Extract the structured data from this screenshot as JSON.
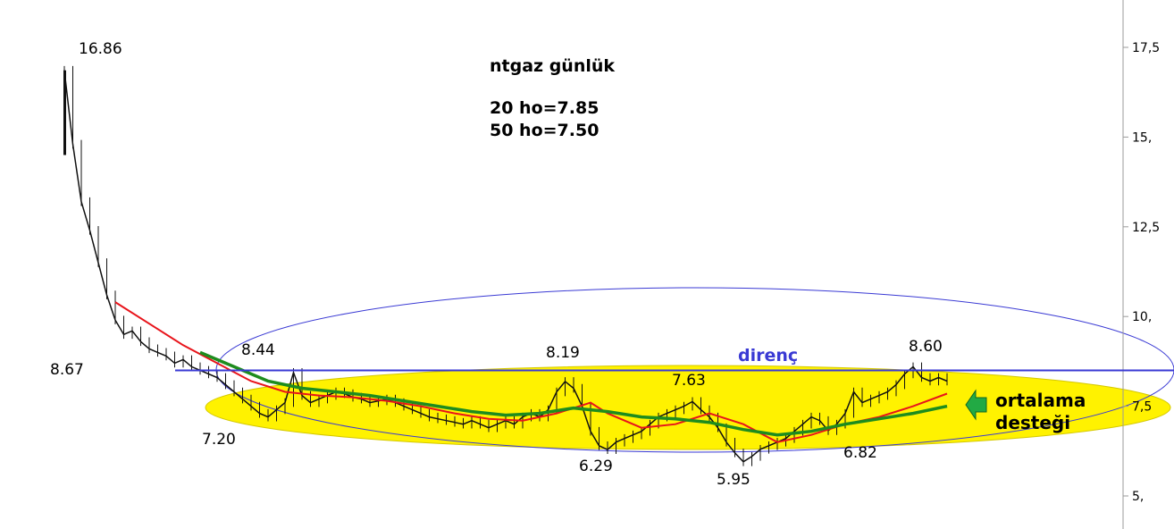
{
  "chart_data": {
    "type": "candlestick",
    "title": "ntgaz günlük",
    "ma_lines": [
      {
        "text": "20 ho=7.85",
        "color": "#e8141b"
      },
      {
        "text": "50 ho=7.50",
        "color": "#1e8c1e"
      }
    ],
    "y_axis": {
      "min": 4.5,
      "max": 18.5,
      "ticks": [
        {
          "value": 17.5,
          "label": "17,5"
        },
        {
          "value": 15,
          "label": "15,"
        },
        {
          "value": 12.5,
          "label": "12,5"
        },
        {
          "value": 10,
          "label": "10,"
        },
        {
          "value": 7.5,
          "label": "7,5"
        },
        {
          "value": 5,
          "label": "5,"
        }
      ]
    },
    "resistance": {
      "value": 8.5,
      "label": "direnç",
      "color": "#3a3ad4"
    },
    "support_label_lines": [
      "ortalama",
      "desteği"
    ],
    "annotations": [
      {
        "text": "16.86",
        "value": 16.86
      },
      {
        "text": "8.67",
        "value": 8.67
      },
      {
        "text": "7.20",
        "value": 7.2
      },
      {
        "text": "8.44",
        "value": 8.44
      },
      {
        "text": "8.19",
        "value": 8.19
      },
      {
        "text": "7.63",
        "value": 7.63
      },
      {
        "text": "6.29",
        "value": 6.29
      },
      {
        "text": "5.95",
        "value": 5.95
      },
      {
        "text": "6.82",
        "value": 6.82
      },
      {
        "text": "8.60",
        "value": 8.6
      }
    ],
    "price_path": [
      [
        0,
        16.86
      ],
      [
        1,
        14.8
      ],
      [
        2,
        13.2
      ],
      [
        3,
        12.4
      ],
      [
        4,
        11.5
      ],
      [
        5,
        10.6
      ],
      [
        6,
        9.9
      ],
      [
        7,
        9.5
      ],
      [
        8,
        9.6
      ],
      [
        9,
        9.3
      ],
      [
        10,
        9.1
      ],
      [
        11,
        9.0
      ],
      [
        12,
        8.9
      ],
      [
        13,
        8.7
      ],
      [
        14,
        8.8
      ],
      [
        15,
        8.6
      ],
      [
        16,
        8.5
      ],
      [
        17,
        8.4
      ],
      [
        18,
        8.3
      ],
      [
        19,
        8.1
      ],
      [
        20,
        7.9
      ],
      [
        21,
        7.7
      ],
      [
        22,
        7.5
      ],
      [
        23,
        7.3
      ],
      [
        24,
        7.2
      ],
      [
        25,
        7.4
      ],
      [
        26,
        7.6
      ],
      [
        27,
        8.44
      ],
      [
        28,
        7.8
      ],
      [
        29,
        7.6
      ],
      [
        30,
        7.7
      ],
      [
        31,
        7.8
      ],
      [
        32,
        7.9
      ],
      [
        33,
        7.85
      ],
      [
        34,
        7.75
      ],
      [
        35,
        7.7
      ],
      [
        36,
        7.6
      ],
      [
        37,
        7.65
      ],
      [
        38,
        7.7
      ],
      [
        39,
        7.6
      ],
      [
        40,
        7.5
      ],
      [
        41,
        7.4
      ],
      [
        42,
        7.3
      ],
      [
        43,
        7.2
      ],
      [
        44,
        7.15
      ],
      [
        45,
        7.1
      ],
      [
        46,
        7.05
      ],
      [
        47,
        7.0
      ],
      [
        48,
        7.1
      ],
      [
        49,
        7.0
      ],
      [
        50,
        6.9
      ],
      [
        51,
        7.0
      ],
      [
        52,
        7.1
      ],
      [
        53,
        7.0
      ],
      [
        54,
        7.2
      ],
      [
        55,
        7.3
      ],
      [
        56,
        7.2
      ],
      [
        57,
        7.4
      ],
      [
        58,
        7.9
      ],
      [
        59,
        8.19
      ],
      [
        60,
        8.0
      ],
      [
        61,
        7.5
      ],
      [
        62,
        6.8
      ],
      [
        63,
        6.4
      ],
      [
        64,
        6.29
      ],
      [
        65,
        6.5
      ],
      [
        66,
        6.6
      ],
      [
        67,
        6.7
      ],
      [
        68,
        6.8
      ],
      [
        69,
        7.0
      ],
      [
        70,
        7.2
      ],
      [
        71,
        7.3
      ],
      [
        72,
        7.4
      ],
      [
        73,
        7.5
      ],
      [
        74,
        7.63
      ],
      [
        75,
        7.4
      ],
      [
        76,
        7.2
      ],
      [
        77,
        6.9
      ],
      [
        78,
        6.5
      ],
      [
        79,
        6.2
      ],
      [
        80,
        5.95
      ],
      [
        81,
        6.1
      ],
      [
        82,
        6.3
      ],
      [
        83,
        6.4
      ],
      [
        84,
        6.5
      ],
      [
        85,
        6.6
      ],
      [
        86,
        6.8
      ],
      [
        87,
        7.0
      ],
      [
        88,
        7.2
      ],
      [
        89,
        7.1
      ],
      [
        90,
        6.82
      ],
      [
        91,
        7.0
      ],
      [
        92,
        7.3
      ],
      [
        93,
        7.9
      ],
      [
        94,
        7.6
      ],
      [
        95,
        7.7
      ],
      [
        96,
        7.8
      ],
      [
        97,
        7.9
      ],
      [
        98,
        8.1
      ],
      [
        99,
        8.4
      ],
      [
        100,
        8.6
      ],
      [
        101,
        8.3
      ],
      [
        102,
        8.2
      ],
      [
        103,
        8.3
      ],
      [
        104,
        8.2
      ]
    ],
    "ma20_path": [
      [
        6,
        10.4
      ],
      [
        10,
        9.8
      ],
      [
        14,
        9.2
      ],
      [
        18,
        8.7
      ],
      [
        22,
        8.2
      ],
      [
        26,
        7.9
      ],
      [
        30,
        7.8
      ],
      [
        34,
        7.75
      ],
      [
        38,
        7.65
      ],
      [
        42,
        7.5
      ],
      [
        46,
        7.3
      ],
      [
        50,
        7.15
      ],
      [
        54,
        7.1
      ],
      [
        58,
        7.3
      ],
      [
        62,
        7.6
      ],
      [
        64,
        7.3
      ],
      [
        68,
        6.9
      ],
      [
        72,
        7.0
      ],
      [
        76,
        7.3
      ],
      [
        80,
        7.0
      ],
      [
        84,
        6.5
      ],
      [
        88,
        6.7
      ],
      [
        92,
        7.0
      ],
      [
        96,
        7.2
      ],
      [
        100,
        7.5
      ],
      [
        104,
        7.85
      ]
    ],
    "ma50_path": [
      [
        16,
        9.0
      ],
      [
        20,
        8.6
      ],
      [
        24,
        8.2
      ],
      [
        28,
        8.0
      ],
      [
        32,
        7.9
      ],
      [
        36,
        7.8
      ],
      [
        40,
        7.65
      ],
      [
        44,
        7.5
      ],
      [
        48,
        7.35
      ],
      [
        52,
        7.25
      ],
      [
        56,
        7.3
      ],
      [
        60,
        7.45
      ],
      [
        64,
        7.35
      ],
      [
        68,
        7.2
      ],
      [
        72,
        7.15
      ],
      [
        76,
        7.05
      ],
      [
        80,
        6.85
      ],
      [
        84,
        6.7
      ],
      [
        88,
        6.8
      ],
      [
        92,
        7.0
      ],
      [
        96,
        7.15
      ],
      [
        100,
        7.3
      ],
      [
        104,
        7.5
      ]
    ]
  }
}
